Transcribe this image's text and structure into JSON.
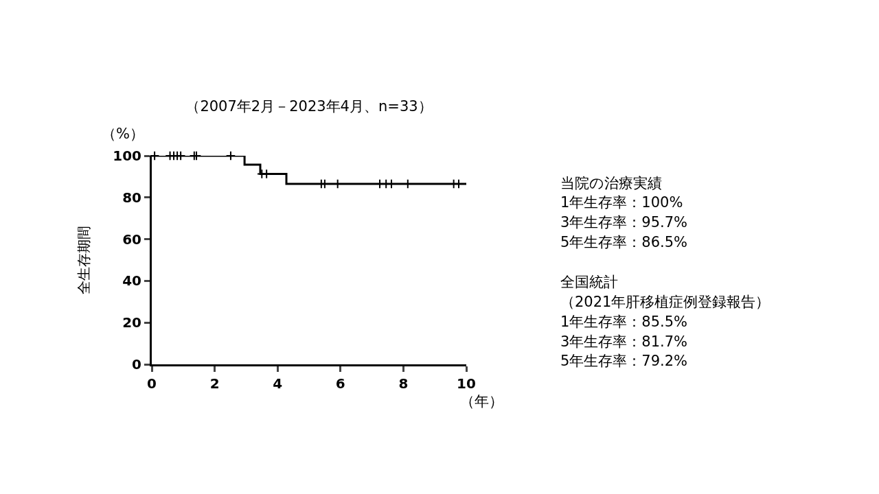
{
  "chart_data": {
    "type": "step",
    "title": "（2007年2月－2023年4月、n=33）",
    "ylabel": "全生存期間",
    "annotations": [
      "（%）",
      "（年）",
      "当院の治療実績",
      "1年生存率：100%",
      "3年生存率：95.7%",
      "5年生存率：86.5%",
      "全国統計",
      "（2021年肝移植症例登録報告）",
      "1年生存率：85.5%",
      "3年生存率：81.7%",
      "5年生存率：79.2%"
    ],
    "series": [
      {
        "color": "#000000",
        "marker": "none",
        "x": [
          0,
          2.95,
          3.45,
          4.28,
          10
        ],
        "values": [
          100,
          95.7,
          91.3,
          86.5,
          86.5
        ]
      },
      {
        "type": "scatter",
        "color": "#000000",
        "marker": "cross",
        "x": [
          0.09,
          0.58,
          0.7,
          0.81,
          0.92,
          1.35,
          1.42,
          2.51,
          3.5,
          3.65,
          5.39,
          5.5,
          5.91,
          7.25,
          7.45,
          7.62,
          8.14,
          9.6,
          9.76
        ],
        "values": [
          100,
          100,
          100,
          100,
          100,
          100,
          100,
          100,
          91.3,
          91.3,
          86.5,
          86.5,
          86.5,
          86.5,
          86.5,
          86.5,
          86.5,
          86.5,
          86.5
        ]
      }
    ],
    "xlim": [
      0,
      10
    ],
    "xticks": [
      0,
      2,
      4,
      6,
      8,
      10
    ],
    "ylim": [
      0,
      100
    ],
    "yticks": [
      0,
      20,
      40,
      60,
      80,
      100
    ]
  }
}
